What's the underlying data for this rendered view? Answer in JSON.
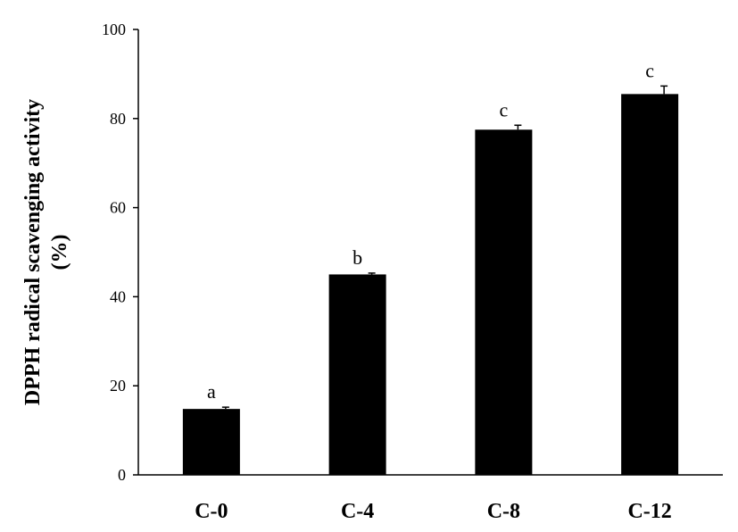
{
  "chart_data": {
    "type": "bar",
    "categories": [
      "C-0",
      "C-4",
      "C-8",
      "C-12"
    ],
    "values": [
      14.8,
      45.0,
      77.5,
      85.5
    ],
    "errors": [
      0.4,
      0.3,
      1.0,
      1.8
    ],
    "significance_labels": [
      "a",
      "b",
      "c",
      "c"
    ],
    "title": "",
    "xlabel": "",
    "ylabel_lines": [
      "DPPH radical scavenging activity",
      "(%)"
    ],
    "ylim": [
      0,
      100
    ],
    "yticks": [
      0,
      20,
      40,
      60,
      80,
      100
    ],
    "bar_color": "#000000",
    "grid": false,
    "legend": "none"
  }
}
